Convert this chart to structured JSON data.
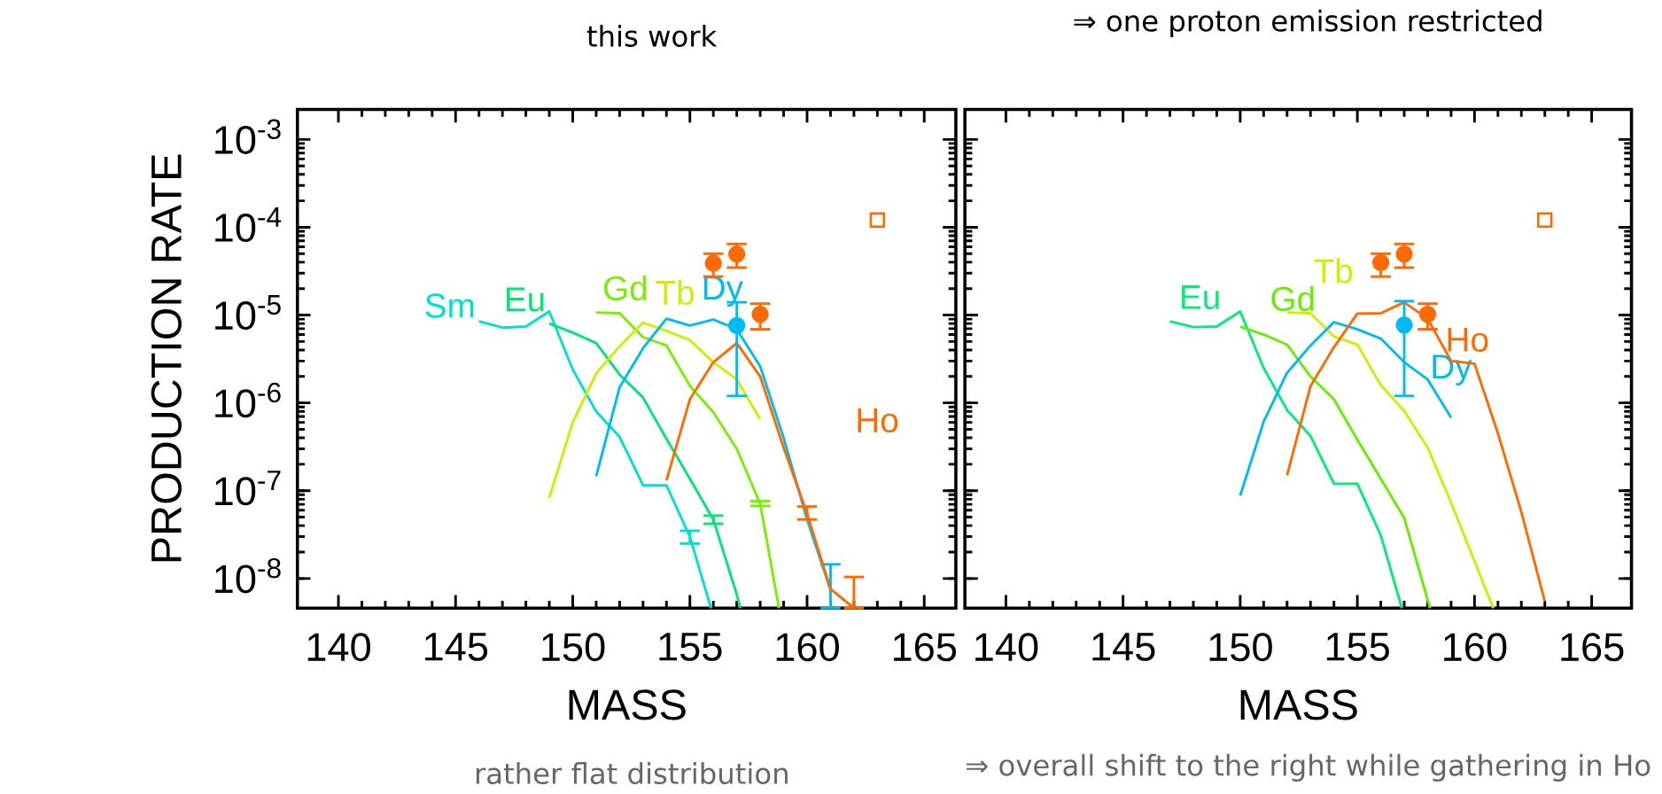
{
  "chart_data": [
    {
      "type": "line",
      "title": "this work",
      "xlabel": "MASS",
      "ylabel": "PRODUCTION RATE",
      "log": true,
      "xlim": [
        138.25,
        166.35
      ],
      "ylim": [
        4.6e-09,
        0.0022
      ],
      "xticks": [
        140,
        145,
        150,
        155,
        160,
        165
      ],
      "yticks": [
        {
          "value": 1e-08,
          "label": "10$^{-8}$"
        },
        {
          "value": 1e-07,
          "label": "10$^{-7}$"
        },
        {
          "value": 1e-06,
          "label": "10$^{-6}$"
        },
        {
          "value": 1e-05,
          "label": "10$^{-5}$"
        },
        {
          "value": 0.0001,
          "label": "10$^{-4}$"
        },
        {
          "value": 0.001,
          "label": "10$^{-3}$"
        }
      ],
      "annotations": [
        "rather flat distribution"
      ],
      "series": [
        {
          "name": "Sm",
          "color": "#00e0d0",
          "x": [
            146,
            147,
            148,
            149,
            150,
            151,
            152,
            153,
            154,
            155,
            155.9
          ],
          "values": [
            8.5e-06,
            7.2e-06,
            7.4e-06,
            1.1e-05,
            2.4e-06,
            8e-07,
            4.1e-07,
            1.15e-07,
            1.15e-07,
            3e-08,
            4.6e-09
          ],
          "errors": [
            null,
            null,
            null,
            null,
            null,
            null,
            null,
            null,
            null,
            [
              2.5e-08,
              3.5e-08
            ],
            null
          ]
        },
        {
          "name": "Eu",
          "color": "#00e676",
          "x": [
            149,
            150,
            151,
            152,
            153,
            154,
            155,
            156,
            157,
            157.15
          ],
          "values": [
            8e-06,
            6.3e-06,
            4.8e-06,
            2.1e-06,
            1.15e-06,
            3.9e-07,
            1.37e-07,
            4.7e-08,
            6.6e-09,
            4.6e-09
          ],
          "errors": [
            null,
            null,
            null,
            null,
            null,
            null,
            null,
            [
              4.2e-08,
              5.2e-08
            ],
            null,
            null
          ]
        },
        {
          "name": "Gd",
          "color": "#7aee00",
          "x": [
            151,
            152,
            153,
            154,
            155,
            156,
            157,
            158,
            158.8
          ],
          "values": [
            1.07e-05,
            1.05e-05,
            5.6e-06,
            4.5e-06,
            1.56e-06,
            7.8e-07,
            3e-07,
            7.1e-08,
            4.6e-09
          ],
          "errors": [
            null,
            null,
            null,
            null,
            null,
            null,
            null,
            [
              6.7e-08,
              7.6e-08
            ],
            null
          ]
        },
        {
          "name": "Tb",
          "color": "#ccf000",
          "x": [
            149,
            150,
            151,
            152,
            153,
            154,
            155,
            156,
            157,
            158
          ],
          "values": [
            8.3e-08,
            6e-07,
            2.16e-06,
            4.4e-06,
            8.2e-06,
            6.6e-06,
            5.2e-06,
            2.9e-06,
            1.85e-06,
            6.5e-07
          ],
          "errors": [
            null,
            null,
            null,
            null,
            null,
            null,
            null,
            null,
            null,
            null
          ]
        },
        {
          "name": "Dy",
          "color": "#00bbf0",
          "x": [
            151,
            152,
            153,
            154,
            155,
            156,
            157,
            158,
            159,
            160,
            161
          ],
          "values": [
            1.46e-07,
            1.51e-06,
            4.2e-06,
            9.1e-06,
            7.6e-06,
            8.9e-06,
            6.9e-06,
            2.6e-06,
            4e-07,
            4.7e-08,
            7.4e-09
          ],
          "errors": [
            null,
            null,
            null,
            null,
            null,
            null,
            null,
            null,
            null,
            null,
            [
              4.6e-09,
              1.45e-08
            ]
          ]
        },
        {
          "name": "Ho",
          "color": "#ff6a00",
          "x": [
            154,
            155,
            156,
            157,
            158,
            159,
            160,
            161,
            162
          ],
          "values": [
            1.31e-07,
            1.1e-06,
            2.9e-06,
            4.8e-06,
            2e-06,
            3.1e-07,
            5.5e-08,
            7.6e-09,
            4.6e-09
          ],
          "errors": [
            null,
            null,
            null,
            null,
            null,
            null,
            [
              4.7e-08,
              6.6e-08
            ],
            null,
            [
              4.6e-09,
              1.04e-08
            ]
          ]
        },
        {
          "type": "scatter",
          "marker": "circle",
          "color": "#ff6a00",
          "x": [
            156,
            157,
            158
          ],
          "values": [
            3.9e-05,
            4.95e-05,
            1.02e-05
          ],
          "errors": [
            [
              2.74e-05,
              5e-05
            ],
            [
              3.47e-05,
              6.45e-05
            ],
            [
              6.9e-06,
              1.35e-05
            ]
          ]
        },
        {
          "type": "scatter",
          "marker": "circle",
          "color": "#00bbf0",
          "x": [
            157
          ],
          "values": [
            7.6e-06
          ],
          "errors": [
            [
              1.2e-06,
              1.4e-05
            ]
          ]
        },
        {
          "type": "scatter",
          "marker": "square",
          "color": "#ff6a00",
          "x": [
            163
          ],
          "values": [
            0.000121
          ]
        }
      ]
    },
    {
      "type": "line",
      "title": "⇒ one proton emission restricted",
      "xlabel": "MASS",
      "log": true,
      "tick_labels": "x",
      "xlim": [
        138.25,
        166.7
      ],
      "ylim": [
        4.6e-09,
        0.0022
      ],
      "xticks": [
        140,
        145,
        150,
        155,
        160,
        165
      ],
      "yticks": [
        {
          "value": 1e-08,
          "label": null
        },
        {
          "value": 1e-07,
          "label": null
        },
        {
          "value": 1e-06,
          "label": null
        },
        {
          "value": 1e-05,
          "label": null
        },
        {
          "value": 0.0001,
          "label": null
        },
        {
          "value": 0.001,
          "label": null
        }
      ],
      "annotations": [
        "⇒ overall shift to the right while gathering in Ho"
      ],
      "series": [
        {
          "name": "Eu",
          "color": "#00ee77",
          "x": [
            147,
            148,
            149,
            150,
            151,
            152,
            153,
            154,
            155,
            156,
            156.9
          ],
          "values": [
            8.5e-06,
            7.3e-06,
            7.4e-06,
            1.1e-05,
            2.5e-06,
            8.3e-07,
            4.2e-07,
            1.2e-07,
            1.2e-07,
            3.1e-08,
            4.6e-09
          ]
        },
        {
          "name": "Gd",
          "color": "#66ee00",
          "x": [
            150,
            151,
            152,
            153,
            154,
            155,
            156,
            157,
            158.1
          ],
          "values": [
            7.4e-06,
            6e-06,
            4.6e-06,
            2e-06,
            1.1e-06,
            3.8e-07,
            1.37e-07,
            4.9e-08,
            4.6e-09
          ]
        },
        {
          "name": "Tb",
          "color": "#ccf000",
          "x": [
            152,
            153,
            154,
            155,
            156,
            157,
            158,
            159,
            160.8
          ],
          "values": [
            1.07e-05,
            1.05e-05,
            5.7e-06,
            4.6e-06,
            1.6e-06,
            8.1e-07,
            3.1e-07,
            7.3e-08,
            4.6e-09
          ]
        },
        {
          "name": "Dy",
          "color": "#00bbf0",
          "x": [
            150,
            151,
            152,
            153,
            154,
            155,
            156,
            157,
            158,
            159
          ],
          "values": [
            8.8e-08,
            6.1e-07,
            2.2e-06,
            4.5e-06,
            8.3e-06,
            6.9e-06,
            5.4e-06,
            2.9e-06,
            1.85e-06,
            6.8e-07
          ]
        },
        {
          "name": "Ho",
          "color": "#ff6a00",
          "x": [
            152,
            153,
            154,
            155,
            156,
            157,
            158,
            159,
            160,
            161,
            162,
            163
          ],
          "values": [
            1.5e-07,
            1.55e-06,
            4.3e-06,
            1.04e-05,
            1.05e-05,
            1.4e-05,
            9.1e-06,
            3e-06,
            2.8e-06,
            4.5e-07,
            5.7e-08,
            5.5e-09
          ]
        },
        {
          "type": "scatter",
          "marker": "circle",
          "color": "#ff6a00",
          "x": [
            156,
            157,
            158
          ],
          "values": [
            3.96e-05,
            4.95e-05,
            1.02e-05
          ],
          "errors": [
            [
              2.74e-05,
              5e-05
            ],
            [
              3.47e-05,
              6.45e-05
            ],
            [
              6.9e-06,
              1.35e-05
            ]
          ]
        },
        {
          "type": "scatter",
          "marker": "circle",
          "color": "#00bbf0",
          "x": [
            157
          ],
          "values": [
            7.7e-06
          ],
          "errors": [
            [
              1.2e-06,
              1.44e-05
            ]
          ]
        },
        {
          "type": "scatter",
          "marker": "square",
          "color": "#ff6a00",
          "x": [
            163
          ],
          "values": [
            0.000121
          ]
        }
      ]
    }
  ]
}
